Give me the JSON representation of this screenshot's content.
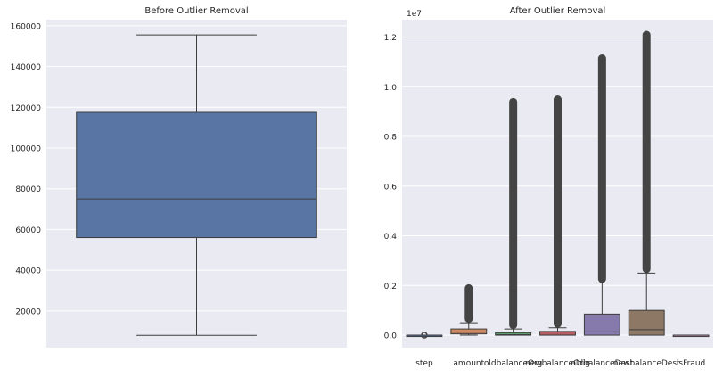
{
  "chart_data": [
    {
      "type": "boxplot",
      "title": "Before Outlier Removal",
      "xlabel": "",
      "ylabel": "",
      "ylim": [
        2000,
        163000
      ],
      "yticks": [
        20000,
        40000,
        60000,
        80000,
        100000,
        120000,
        140000,
        160000
      ],
      "ytick_labels": [
        "20000",
        "40000",
        "60000",
        "80000",
        "100000",
        "120000",
        "140000",
        "160000"
      ],
      "grid": true,
      "boxes": [
        {
          "label": "",
          "color": "#5975a4",
          "whisker_low": 8000,
          "q1": 56000,
          "median": 75000,
          "q3": 117500,
          "whisker_high": 155500,
          "outlier_high": null
        }
      ]
    },
    {
      "type": "boxplot",
      "title": "After Outlier Removal",
      "scale_label": "1e7",
      "xlabel": "",
      "ylabel": "",
      "ylim": [
        -0.05,
        1.27
      ],
      "yticks": [
        0.0,
        0.2,
        0.4,
        0.6,
        0.8,
        1.0,
        1.2
      ],
      "ytick_labels": [
        "0.0",
        "0.2",
        "0.4",
        "0.6",
        "0.8",
        "1.0",
        "1.2"
      ],
      "grid": true,
      "boxes": [
        {
          "label": "step",
          "color": "#5975a4",
          "whisker_low": 0.0,
          "q1": 0.0,
          "median": 0.0,
          "q3": 0.0,
          "whisker_high": 0.0,
          "outlier_high": 0.0
        },
        {
          "label": "amount",
          "color": "#cc8963",
          "whisker_low": 0.0,
          "q1": 0.005,
          "median": 0.012,
          "q3": 0.025,
          "whisker_high": 0.05,
          "outlier_high": 0.205
        },
        {
          "label": "oldbalanceOrg",
          "color": "#5f9e6e",
          "whisker_low": 0.0,
          "q1": 0.0,
          "median": 0.002,
          "q3": 0.01,
          "whisker_high": 0.025,
          "outlier_high": 0.955
        },
        {
          "label": "newbalanceOrig",
          "color": "#b55d60",
          "whisker_low": 0.0,
          "q1": 0.0,
          "median": 0.0,
          "q3": 0.015,
          "whisker_high": 0.03,
          "outlier_high": 0.965
        },
        {
          "label": "oldbalanceDest",
          "color": "#857aab",
          "whisker_low": 0.0,
          "q1": 0.0,
          "median": 0.013,
          "q3": 0.085,
          "whisker_high": 0.21,
          "outlier_high": 1.13
        },
        {
          "label": "newbalanceDest",
          "color": "#8d7866",
          "whisker_low": 0.0,
          "q1": 0.0,
          "median": 0.022,
          "q3": 0.1,
          "whisker_high": 0.25,
          "outlier_high": 1.225
        },
        {
          "label": "isFraud",
          "color": "#d095bf",
          "whisker_low": 0.0,
          "q1": 0.0,
          "median": 0.0,
          "q3": 0.0,
          "whisker_high": 0.0,
          "outlier_high": null
        }
      ]
    }
  ]
}
